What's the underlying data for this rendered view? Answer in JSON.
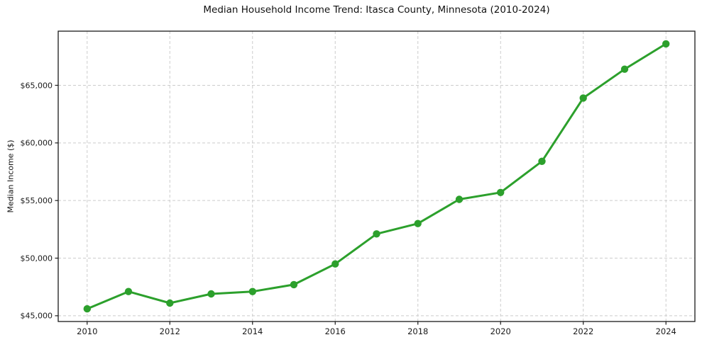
{
  "chart_data": {
    "type": "line",
    "title": "Median Household Income Trend: Itasca County, Minnesota (2010-2024)",
    "xlabel": "",
    "ylabel": "Median Income ($)",
    "x": [
      2010,
      2011,
      2012,
      2013,
      2014,
      2015,
      2016,
      2017,
      2018,
      2019,
      2020,
      2021,
      2022,
      2023,
      2024
    ],
    "series": [
      {
        "name": "Median Household Income",
        "values": [
          45600,
          47100,
          46100,
          46900,
          47100,
          47700,
          49500,
          52100,
          53000,
          55100,
          55700,
          58400,
          63900,
          66400,
          68600
        ]
      }
    ],
    "xlim": [
      2009.3,
      2024.7
    ],
    "ylim": [
      44500,
      69700
    ],
    "xticks": {
      "values": [
        2010,
        2012,
        2014,
        2016,
        2018,
        2020,
        2022,
        2024
      ],
      "labels": [
        "2010",
        "2012",
        "2014",
        "2016",
        "2018",
        "2020",
        "2022",
        "2024"
      ]
    },
    "yticks": {
      "values": [
        45000,
        50000,
        55000,
        60000,
        65000
      ],
      "labels": [
        "$45,000",
        "$50,000",
        "$55,000",
        "$60,000",
        "$65,000"
      ]
    },
    "grid": true,
    "grid_style": "dashed",
    "legend_position": "none",
    "style": {
      "line_color": "#2ca02c",
      "marker": "circle",
      "marker_radius": 5.2,
      "line_width": 3,
      "grid_color": "#cccccc",
      "axis_color": "#1a1a1a",
      "tick_text_color": "#1a1a1a",
      "background": "#ffffff"
    }
  }
}
